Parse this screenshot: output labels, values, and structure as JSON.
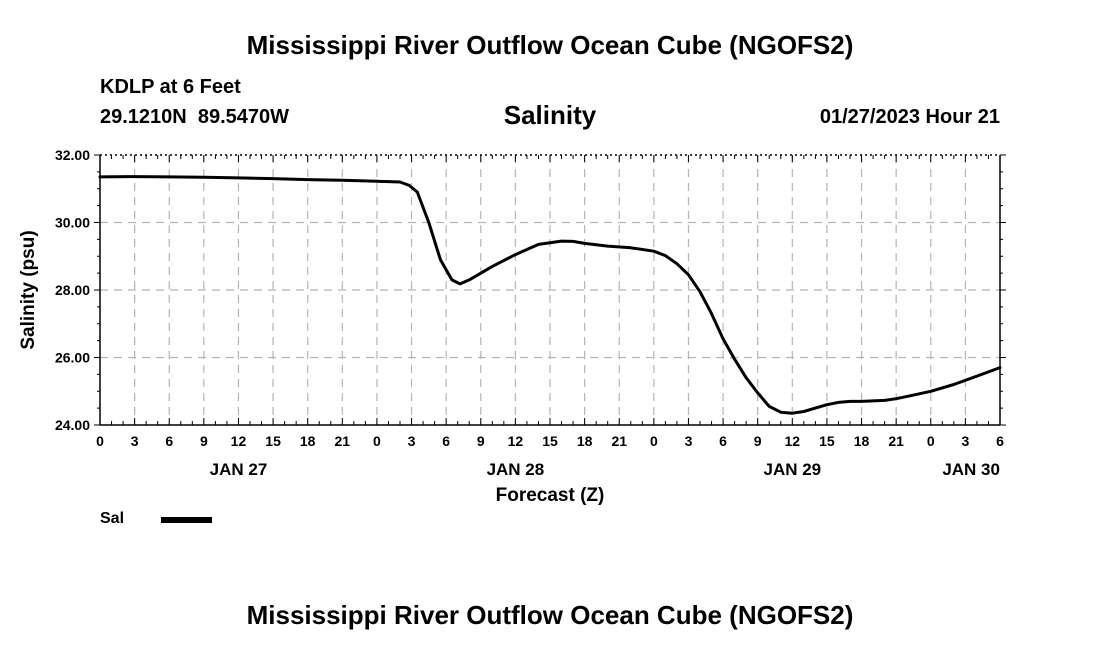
{
  "header": {
    "title_top": "Mississippi River Outflow Ocean Cube (NGOFS2)",
    "station": "KDLP at 6 Feet",
    "coords": "29.1210N  89.5470W",
    "datetime": "01/27/2023 Hour 21",
    "title_bottom": "Mississippi River Outflow Ocean Cube (NGOFS2)"
  },
  "legend": {
    "label": "Sal",
    "color": "#000000"
  },
  "chart_data": {
    "type": "line",
    "title": "Salinity",
    "xlabel": "Forecast (Z)",
    "ylabel": "Salinity (psu)",
    "x_unit": "hours since Jan 27 00Z",
    "xlim": [
      0,
      78
    ],
    "ylim": [
      24.0,
      32.0
    ],
    "y_ticks": [
      "24.00",
      "26.00",
      "28.00",
      "30.00",
      "32.00"
    ],
    "y_tick_values": [
      24,
      26,
      28,
      30,
      32
    ],
    "x_tick_labels": [
      "0",
      "3",
      "6",
      "9",
      "12",
      "15",
      "18",
      "21",
      "0",
      "3",
      "6",
      "9",
      "12",
      "15",
      "18",
      "21",
      "0",
      "3",
      "6",
      "9",
      "12",
      "15",
      "18",
      "21",
      "0",
      "3",
      "6"
    ],
    "date_labels": [
      {
        "label": "JAN 27",
        "hour": 12
      },
      {
        "label": "JAN 28",
        "hour": 36
      },
      {
        "label": "JAN 29",
        "hour": 60
      },
      {
        "label": "JAN 30",
        "hour": 75.5
      }
    ],
    "grid": true,
    "series": [
      {
        "name": "Sal",
        "x": [
          0,
          3,
          6,
          9,
          12,
          15,
          18,
          21,
          24,
          26,
          26.8,
          27.5,
          28.5,
          29.5,
          30.5,
          31.2,
          32,
          34,
          36,
          38,
          40,
          41,
          42,
          43,
          44,
          46,
          48,
          49,
          50,
          51,
          52,
          53,
          54,
          55,
          56,
          57,
          58,
          59,
          60,
          61,
          62,
          63,
          64,
          65,
          66,
          68,
          69,
          70,
          72,
          74,
          76,
          78
        ],
        "y": [
          31.35,
          31.36,
          31.35,
          31.34,
          31.32,
          31.3,
          31.27,
          31.25,
          31.22,
          31.2,
          31.1,
          30.9,
          30.0,
          28.9,
          28.3,
          28.18,
          28.3,
          28.7,
          29.05,
          29.35,
          29.45,
          29.44,
          29.38,
          29.34,
          29.3,
          29.25,
          29.15,
          29.02,
          28.78,
          28.45,
          27.95,
          27.3,
          26.55,
          25.95,
          25.4,
          24.95,
          24.55,
          24.38,
          24.35,
          24.4,
          24.5,
          24.6,
          24.67,
          24.7,
          24.7,
          24.73,
          24.78,
          24.85,
          25.0,
          25.2,
          25.45,
          25.7
        ]
      }
    ]
  }
}
